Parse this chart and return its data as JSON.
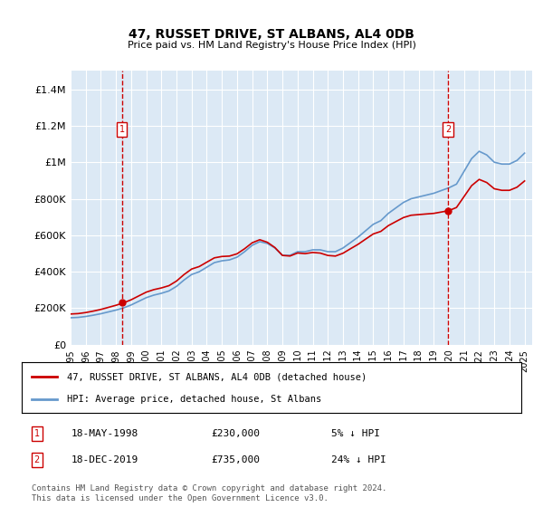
{
  "title": "47, RUSSET DRIVE, ST ALBANS, AL4 0DB",
  "subtitle": "Price paid vs. HM Land Registry's House Price Index (HPI)",
  "legend_label_red": "47, RUSSET DRIVE, ST ALBANS, AL4 0DB (detached house)",
  "legend_label_blue": "HPI: Average price, detached house, St Albans",
  "footnote": "Contains HM Land Registry data © Crown copyright and database right 2024.\nThis data is licensed under the Open Government Licence v3.0.",
  "sale1_date_str": "18-MAY-1998",
  "sale1_price": 230000,
  "sale1_pct": "5% ↓ HPI",
  "sale1_year": 1998.38,
  "sale2_date_str": "18-DEC-2019",
  "sale2_price": 735000,
  "sale2_pct": "24% ↓ HPI",
  "sale2_year": 2019.96,
  "ylim": [
    0,
    1500000
  ],
  "xlim": [
    1995,
    2025.5
  ],
  "background_color": "#dce9f5",
  "plot_bg": "#dce9f5",
  "red_color": "#cc0000",
  "blue_color": "#6699cc",
  "grid_color": "#ffffff",
  "yticks": [
    0,
    200000,
    400000,
    600000,
    800000,
    1000000,
    1200000,
    1400000
  ],
  "ytick_labels": [
    "£0",
    "£200K",
    "£400K",
    "£600K",
    "£800K",
    "£1M",
    "£1.2M",
    "£1.4M"
  ],
  "xticks": [
    1995,
    1996,
    1997,
    1998,
    1999,
    2000,
    2001,
    2002,
    2003,
    2004,
    2005,
    2006,
    2007,
    2008,
    2009,
    2010,
    2011,
    2012,
    2013,
    2014,
    2015,
    2016,
    2017,
    2018,
    2019,
    2020,
    2021,
    2022,
    2023,
    2024,
    2025
  ]
}
